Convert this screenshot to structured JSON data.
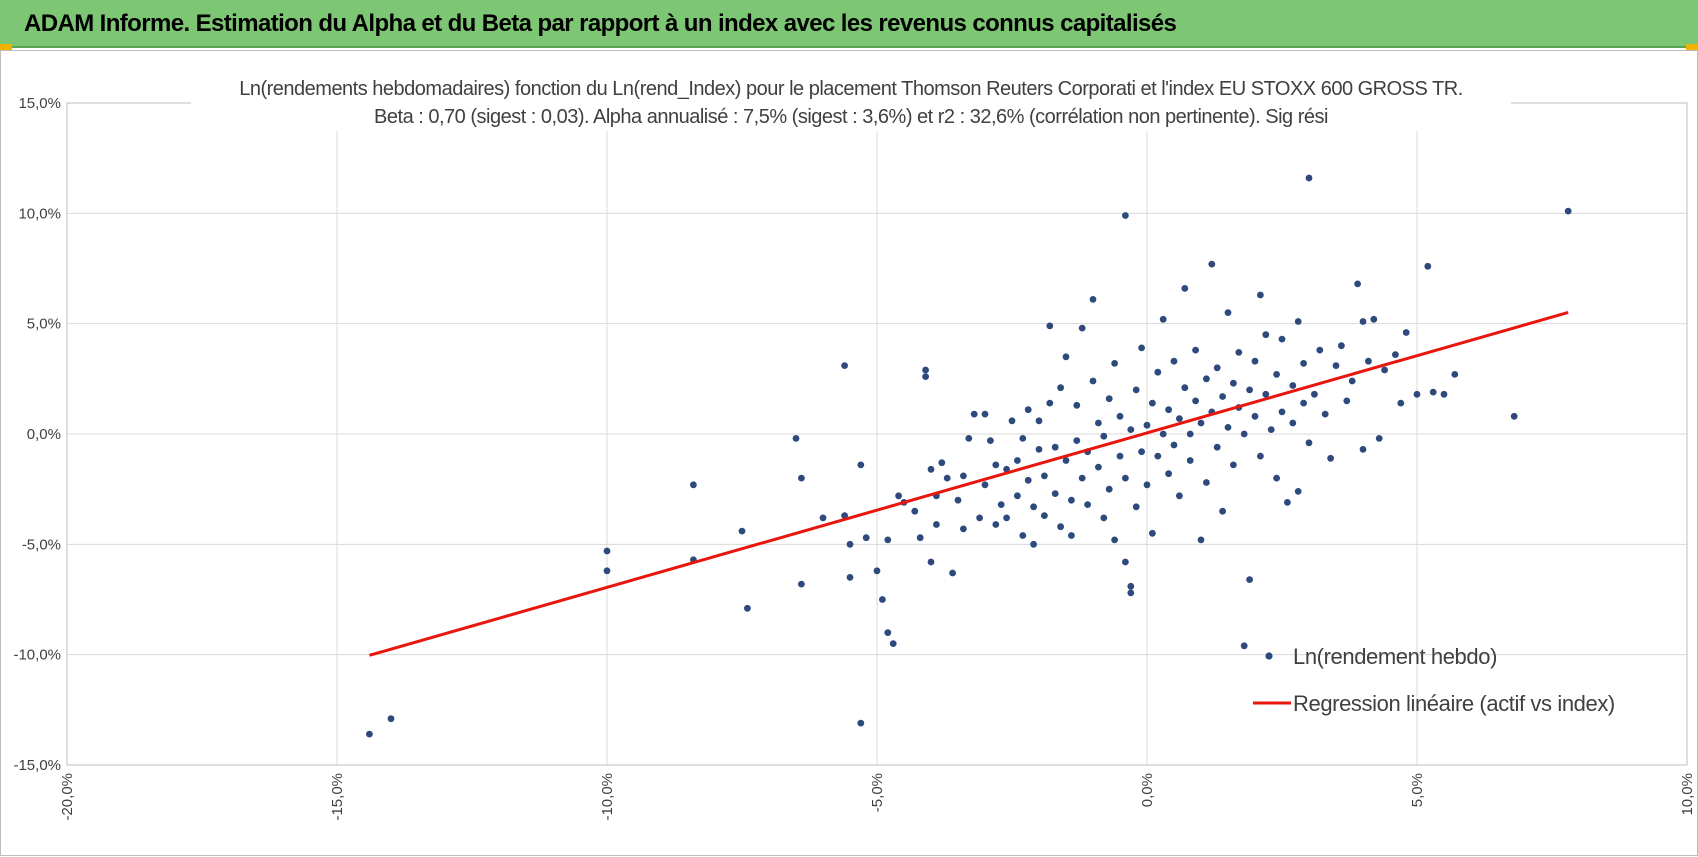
{
  "header": {
    "title": "ADAM Informe. Estimation du Alpha et du Beta par rapport à un index avec les revenus connus capitalisés",
    "accent_color": "#7dc673"
  },
  "chart_data": {
    "type": "scatter",
    "title": "Ln(rendements hebdomadaires) fonction du Ln(rend_Index) pour le placement Thomson Reuters Corporati et l'index EU STOXX 600 GROSS TR.",
    "subtitle": "Beta : 0,70 (sigest : 0,03). Alpha annualisé : 7,5% (sigest : 3,6%) et r2 : 32,6% (corrélation non pertinente). Sig rési",
    "xlabel": "",
    "ylabel": "",
    "xlim": [
      -0.2,
      0.1
    ],
    "ylim": [
      -0.15,
      0.15
    ],
    "x_tick_labels": [
      "-20,0%",
      "-15,0%",
      "-10,0%",
      "-5,0%",
      "0,0%",
      "5,0%",
      "10,0%"
    ],
    "y_tick_labels": [
      "15,0%",
      "10,0%",
      "5,0%",
      "0,0%",
      "-5,0%",
      "-10,0%",
      "-15,0%"
    ],
    "grid": true,
    "legend_position": "bottom-right",
    "series": [
      {
        "name": "Ln(rendement hebdo)",
        "kind": "scatter",
        "color": "#2e4a7d",
        "points": [
          [
            -0.144,
            -0.136
          ],
          [
            -0.14,
            -0.129
          ],
          [
            -0.1,
            -0.053
          ],
          [
            -0.1,
            -0.062
          ],
          [
            -0.084,
            -0.023
          ],
          [
            -0.084,
            -0.057
          ],
          [
            -0.075,
            -0.044
          ],
          [
            -0.074,
            -0.079
          ],
          [
            -0.065,
            -0.002
          ],
          [
            -0.064,
            -0.02
          ],
          [
            -0.064,
            -0.068
          ],
          [
            -0.06,
            -0.038
          ],
          [
            -0.056,
            -0.037
          ],
          [
            -0.056,
            0.031
          ],
          [
            -0.055,
            -0.065
          ],
          [
            -0.055,
            -0.05
          ],
          [
            -0.053,
            -0.014
          ],
          [
            -0.053,
            -0.131
          ],
          [
            -0.052,
            -0.047
          ],
          [
            -0.05,
            -0.062
          ],
          [
            -0.049,
            -0.075
          ],
          [
            -0.048,
            -0.048
          ],
          [
            -0.048,
            -0.09
          ],
          [
            -0.047,
            -0.095
          ],
          [
            -0.046,
            -0.028
          ],
          [
            -0.045,
            -0.031
          ],
          [
            -0.043,
            -0.035
          ],
          [
            -0.042,
            -0.047
          ],
          [
            -0.041,
            0.026
          ],
          [
            -0.041,
            0.029
          ],
          [
            -0.04,
            -0.058
          ],
          [
            -0.04,
            -0.016
          ],
          [
            -0.039,
            -0.041
          ],
          [
            -0.039,
            -0.028
          ],
          [
            -0.038,
            -0.013
          ],
          [
            -0.037,
            -0.02
          ],
          [
            -0.036,
            -0.063
          ],
          [
            -0.035,
            -0.03
          ],
          [
            -0.034,
            -0.043
          ],
          [
            -0.034,
            -0.019
          ],
          [
            -0.033,
            -0.002
          ],
          [
            -0.032,
            0.009
          ],
          [
            -0.031,
            -0.038
          ],
          [
            -0.03,
            0.009
          ],
          [
            -0.03,
            -0.023
          ],
          [
            -0.029,
            -0.003
          ],
          [
            -0.028,
            -0.041
          ],
          [
            -0.028,
            -0.014
          ],
          [
            -0.027,
            -0.032
          ],
          [
            -0.026,
            -0.016
          ],
          [
            -0.026,
            -0.038
          ],
          [
            -0.025,
            0.006
          ],
          [
            -0.024,
            -0.012
          ],
          [
            -0.024,
            -0.028
          ],
          [
            -0.023,
            -0.046
          ],
          [
            -0.023,
            -0.002
          ],
          [
            -0.022,
            0.011
          ],
          [
            -0.022,
            -0.021
          ],
          [
            -0.021,
            -0.033
          ],
          [
            -0.021,
            -0.05
          ],
          [
            -0.02,
            -0.007
          ],
          [
            -0.02,
            0.006
          ],
          [
            -0.019,
            -0.019
          ],
          [
            -0.019,
            -0.037
          ],
          [
            -0.018,
            0.014
          ],
          [
            -0.018,
            0.049
          ],
          [
            -0.017,
            -0.027
          ],
          [
            -0.017,
            -0.006
          ],
          [
            -0.016,
            -0.042
          ],
          [
            -0.016,
            0.021
          ],
          [
            -0.015,
            -0.012
          ],
          [
            -0.015,
            0.035
          ],
          [
            -0.014,
            -0.03
          ],
          [
            -0.014,
            -0.046
          ],
          [
            -0.013,
            -0.003
          ],
          [
            -0.013,
            0.013
          ],
          [
            -0.012,
            -0.02
          ],
          [
            -0.012,
            0.048
          ],
          [
            -0.011,
            -0.032
          ],
          [
            -0.011,
            -0.008
          ],
          [
            -0.01,
            0.061
          ],
          [
            -0.01,
            0.024
          ],
          [
            -0.009,
            -0.015
          ],
          [
            -0.009,
            0.005
          ],
          [
            -0.008,
            -0.038
          ],
          [
            -0.008,
            -0.001
          ],
          [
            -0.007,
            -0.025
          ],
          [
            -0.007,
            0.016
          ],
          [
            -0.006,
            0.032
          ],
          [
            -0.006,
            -0.048
          ],
          [
            -0.005,
            -0.01
          ],
          [
            -0.005,
            0.008
          ],
          [
            -0.004,
            -0.058
          ],
          [
            -0.004,
            -0.02
          ],
          [
            -0.004,
            0.099
          ],
          [
            -0.003,
            -0.069
          ],
          [
            -0.003,
            -0.072
          ],
          [
            -0.003,
            0.002
          ],
          [
            -0.002,
            -0.033
          ],
          [
            -0.002,
            0.02
          ],
          [
            -0.001,
            -0.008
          ],
          [
            -0.001,
            0.039
          ],
          [
            0.0,
            -0.023
          ],
          [
            0.0,
            0.004
          ],
          [
            0.001,
            0.014
          ],
          [
            0.001,
            -0.045
          ],
          [
            0.002,
            0.028
          ],
          [
            0.002,
            -0.01
          ],
          [
            0.003,
            0.052
          ],
          [
            0.003,
            0.0
          ],
          [
            0.004,
            -0.018
          ],
          [
            0.004,
            0.011
          ],
          [
            0.005,
            0.033
          ],
          [
            0.005,
            -0.005
          ],
          [
            0.006,
            -0.028
          ],
          [
            0.006,
            0.007
          ],
          [
            0.007,
            0.021
          ],
          [
            0.007,
            0.066
          ],
          [
            0.008,
            -0.012
          ],
          [
            0.008,
            0.0
          ],
          [
            0.009,
            0.038
          ],
          [
            0.009,
            0.015
          ],
          [
            0.01,
            -0.048
          ],
          [
            0.01,
            0.005
          ],
          [
            0.011,
            0.025
          ],
          [
            0.011,
            -0.022
          ],
          [
            0.012,
            0.01
          ],
          [
            0.012,
            0.077
          ],
          [
            0.013,
            -0.006
          ],
          [
            0.013,
            0.03
          ],
          [
            0.014,
            0.017
          ],
          [
            0.014,
            -0.035
          ],
          [
            0.015,
            0.003
          ],
          [
            0.015,
            0.055
          ],
          [
            0.016,
            0.023
          ],
          [
            0.016,
            -0.014
          ],
          [
            0.017,
            0.012
          ],
          [
            0.017,
            0.037
          ],
          [
            0.018,
            -0.096
          ],
          [
            0.018,
            0.0
          ],
          [
            0.019,
            0.02
          ],
          [
            0.019,
            -0.066
          ],
          [
            0.02,
            0.008
          ],
          [
            0.02,
            0.033
          ],
          [
            0.021,
            0.063
          ],
          [
            0.021,
            -0.01
          ],
          [
            0.022,
            0.018
          ],
          [
            0.022,
            0.045
          ],
          [
            0.023,
            0.002
          ],
          [
            0.024,
            0.027
          ],
          [
            0.024,
            -0.02
          ],
          [
            0.025,
            0.01
          ],
          [
            0.025,
            0.043
          ],
          [
            0.026,
            -0.031
          ],
          [
            0.027,
            0.022
          ],
          [
            0.027,
            0.005
          ],
          [
            0.028,
            0.051
          ],
          [
            0.028,
            -0.026
          ],
          [
            0.029,
            0.032
          ],
          [
            0.029,
            0.014
          ],
          [
            0.03,
            0.116
          ],
          [
            0.03,
            -0.004
          ],
          [
            0.031,
            0.018
          ],
          [
            0.032,
            0.038
          ],
          [
            0.033,
            0.009
          ],
          [
            0.034,
            -0.011
          ],
          [
            0.035,
            0.031
          ],
          [
            0.036,
            0.04
          ],
          [
            0.037,
            0.015
          ],
          [
            0.038,
            0.024
          ],
          [
            0.039,
            0.068
          ],
          [
            0.04,
            -0.007
          ],
          [
            0.04,
            0.051
          ],
          [
            0.041,
            0.033
          ],
          [
            0.042,
            0.052
          ],
          [
            0.043,
            -0.002
          ],
          [
            0.044,
            0.029
          ],
          [
            0.046,
            0.036
          ],
          [
            0.047,
            0.014
          ],
          [
            0.048,
            0.046
          ],
          [
            0.05,
            0.018
          ],
          [
            0.052,
            0.076
          ],
          [
            0.053,
            0.019
          ],
          [
            0.055,
            0.018
          ],
          [
            0.057,
            0.027
          ],
          [
            0.068,
            0.008
          ],
          [
            0.078,
            0.101
          ]
        ]
      },
      {
        "name": "Regression linéaire (actif vs index)",
        "kind": "line",
        "color": "#e8160c",
        "slope": 0.7,
        "intercept": 0.0005,
        "x_range": [
          -0.144,
          0.078
        ]
      }
    ]
  }
}
